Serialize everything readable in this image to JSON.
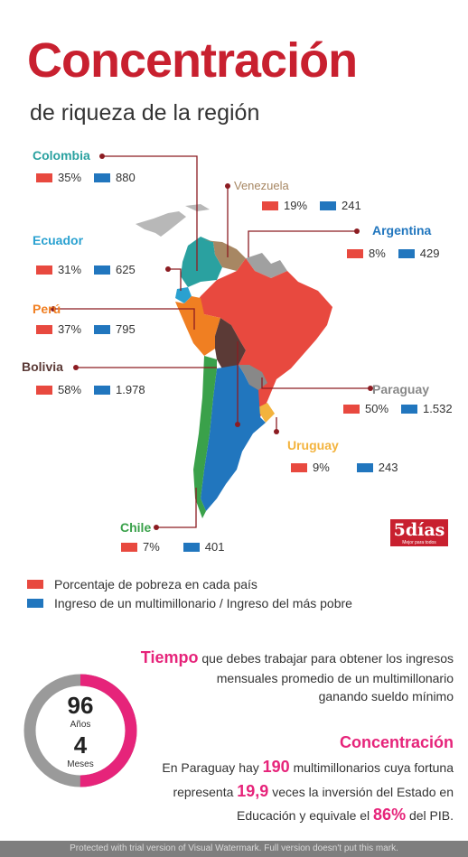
{
  "header": {
    "title": "Concentración",
    "subtitle": "de riqueza de la región"
  },
  "countries": [
    {
      "name": "Colombia",
      "color": "#2aa1a0",
      "poverty": "35%",
      "ratio": "880"
    },
    {
      "name": "Venezuela",
      "color": "#a78763",
      "poverty": "19%",
      "ratio": "241"
    },
    {
      "name": "Argentina",
      "color": "#2176be",
      "poverty": "8%",
      "ratio": "429"
    },
    {
      "name": "Ecuador",
      "color": "#2aa1d0",
      "poverty": "31%",
      "ratio": "625"
    },
    {
      "name": "Perú",
      "color": "#f07f22",
      "poverty": "37%",
      "ratio": "795"
    },
    {
      "name": "Bolivia",
      "color": "#5b3a36",
      "poverty": "58%",
      "ratio": "1.978"
    },
    {
      "name": "Paraguay",
      "color": "#888888",
      "poverty": "50%",
      "ratio": "1.532"
    },
    {
      "name": "Uruguay",
      "color": "#f3b33d",
      "poverty": "9%",
      "ratio": "243"
    },
    {
      "name": "Chile",
      "color": "#3aa14a",
      "poverty": "7%",
      "ratio": "401"
    }
  ],
  "brand": {
    "logo_text": "5días",
    "logo_tagline": "Mejor para todos"
  },
  "legend": {
    "poverty": "Porcentaje de pobreza en cada país",
    "ratio": "Ingreso de un multimillonario / Ingreso del más pobre"
  },
  "tiempo": {
    "highlight": "Tiempo",
    "line1": " que debes trabajar para obtener los ingresos",
    "line2": "mensuales promedio de un multimillonario",
    "line3": "ganando sueldo mínimo"
  },
  "gauge": {
    "years_value": "96",
    "years_label": "Años",
    "months_value": "4",
    "months_label": "Meses",
    "progress_fraction": 0.5
  },
  "concentracion": {
    "title": "Concentración",
    "line1_pre": "En Paraguay hay ",
    "line1_num": "190",
    "line1_post": " multimillonarios cuya fortuna",
    "line2_pre": "representa ",
    "line2_num": "19,9",
    "line2_post": " veces la inversión del Estado en",
    "line3_pre": "Educación y equivale el ",
    "line3_num": "86%",
    "line3_post": " del PIB."
  },
  "watermark": "Protected with trial version of Visual Watermark. Full version doesn't put this mark.",
  "colors": {
    "red": "#e8493f",
    "blue": "#2176be",
    "brand_red": "#c8202f",
    "pink": "#e6247a",
    "gauge_gray": "#9a9a9a"
  }
}
